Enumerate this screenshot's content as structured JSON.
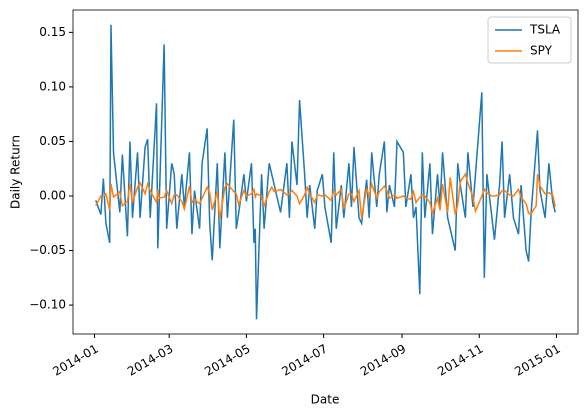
{
  "chart_data": {
    "type": "line",
    "xlabel": "Date",
    "ylabel": "Daily Return",
    "x": [
      "2014-01-02",
      "2014-01-06",
      "2014-01-08",
      "2014-01-10",
      "2014-01-13",
      "2014-01-14",
      "2014-01-16",
      "2014-01-21",
      "2014-01-23",
      "2014-01-27",
      "2014-01-29",
      "2014-01-31",
      "2014-02-04",
      "2014-02-06",
      "2014-02-10",
      "2014-02-12",
      "2014-02-14",
      "2014-02-19",
      "2014-02-20",
      "2014-02-21",
      "2014-02-25",
      "2014-02-27",
      "2014-03-03",
      "2014-03-05",
      "2014-03-07",
      "2014-03-11",
      "2014-03-13",
      "2014-03-17",
      "2014-03-19",
      "2014-03-21",
      "2014-03-25",
      "2014-03-27",
      "2014-03-31",
      "2014-04-02",
      "2014-04-04",
      "2014-04-08",
      "2014-04-10",
      "2014-04-14",
      "2014-04-16",
      "2014-04-21",
      "2014-04-23",
      "2014-04-25",
      "2014-04-29",
      "2014-05-01",
      "2014-05-05",
      "2014-05-07",
      "2014-05-08",
      "2014-05-09",
      "2014-05-13",
      "2014-05-15",
      "2014-05-19",
      "2014-05-21",
      "2014-05-23",
      "2014-05-28",
      "2014-06-02",
      "2014-06-04",
      "2014-06-06",
      "2014-06-10",
      "2014-06-12",
      "2014-06-16",
      "2014-06-18",
      "2014-06-20",
      "2014-06-24",
      "2014-06-26",
      "2014-06-30",
      "2014-07-02",
      "2014-07-07",
      "2014-07-09",
      "2014-07-11",
      "2014-07-15",
      "2014-07-17",
      "2014-07-21",
      "2014-07-23",
      "2014-07-25",
      "2014-07-29",
      "2014-07-31",
      "2014-08-04",
      "2014-08-06",
      "2014-08-08",
      "2014-08-12",
      "2014-08-14",
      "2014-08-18",
      "2014-08-20",
      "2014-08-22",
      "2014-08-26",
      "2014-08-28",
      "2014-09-02",
      "2014-09-04",
      "2014-09-08",
      "2014-09-10",
      "2014-09-12",
      "2014-09-15",
      "2014-09-17",
      "2014-09-19",
      "2014-09-23",
      "2014-09-25",
      "2014-09-29",
      "2014-10-01",
      "2014-10-03",
      "2014-10-07",
      "2014-10-09",
      "2014-10-13",
      "2014-10-15",
      "2014-10-17",
      "2014-10-21",
      "2014-10-23",
      "2014-10-27",
      "2014-10-29",
      "2014-11-03",
      "2014-11-05",
      "2014-11-07",
      "2014-11-11",
      "2014-11-13",
      "2014-11-17",
      "2014-11-19",
      "2014-11-21",
      "2014-11-25",
      "2014-11-28",
      "2014-12-02",
      "2014-12-04",
      "2014-12-08",
      "2014-12-10",
      "2014-12-12",
      "2014-12-16",
      "2014-12-17",
      "2014-12-19",
      "2014-12-23",
      "2014-12-26",
      "2014-12-29",
      "2014-12-31"
    ],
    "series": [
      {
        "name": "TSLA",
        "color": "#1f77b4",
        "values": [
          -0.004,
          -0.017,
          0.016,
          -0.025,
          -0.043,
          0.157,
          0.04,
          -0.015,
          0.038,
          -0.037,
          0.05,
          -0.02,
          0.04,
          -0.02,
          0.045,
          0.052,
          -0.02,
          0.085,
          -0.048,
          -0.01,
          0.139,
          -0.03,
          0.03,
          0.02,
          -0.03,
          0.02,
          -0.01,
          0.04,
          -0.035,
          0.005,
          -0.03,
          0.03,
          0.062,
          -0.025,
          -0.059,
          0.03,
          -0.048,
          0.04,
          -0.02,
          0.07,
          -0.03,
          -0.015,
          0.02,
          -0.005,
          0.03,
          -0.043,
          -0.03,
          -0.113,
          0.02,
          -0.03,
          0.03,
          0.02,
          0.01,
          -0.015,
          0.03,
          -0.02,
          0.05,
          0.01,
          0.088,
          0.02,
          -0.02,
          0.01,
          -0.03,
          0.005,
          0.02,
          -0.01,
          -0.043,
          0.04,
          -0.03,
          0.01,
          -0.02,
          0.03,
          -0.01,
          0.045,
          -0.02,
          -0.025,
          0.015,
          -0.02,
          0.04,
          -0.01,
          0.02,
          0.05,
          -0.015,
          0.01,
          -0.01,
          0.05,
          0.04,
          -0.01,
          0.02,
          -0.02,
          -0.01,
          -0.09,
          0.04,
          -0.02,
          0.03,
          -0.035,
          0.02,
          -0.01,
          0.04,
          -0.02,
          -0.03,
          -0.05,
          0.03,
          0.01,
          -0.02,
          0.04,
          -0.01,
          0.02,
          0.095,
          -0.075,
          0.02,
          -0.02,
          -0.04,
          0.01,
          0.05,
          -0.02,
          0.02,
          -0.02,
          -0.035,
          0.01,
          -0.05,
          -0.06,
          -0.015,
          0.045,
          0.06,
          0.005,
          -0.02,
          0.03,
          -0.005,
          -0.015
        ]
      },
      {
        "name": "SPY",
        "color": "#ff7f0e",
        "values": [
          -0.009,
          0.0,
          0.0,
          0.002,
          -0.013,
          0.011,
          -0.001,
          0.004,
          -0.009,
          -0.005,
          0.011,
          -0.006,
          0.008,
          0.012,
          0.002,
          0.011,
          0.005,
          -0.006,
          0.006,
          -0.002,
          -0.001,
          0.005,
          -0.007,
          0.001,
          0.001,
          -0.005,
          -0.012,
          0.009,
          -0.006,
          -0.003,
          -0.007,
          -0.002,
          0.008,
          0.003,
          -0.013,
          0.004,
          -0.021,
          0.008,
          0.011,
          0.004,
          0.002,
          -0.008,
          0.005,
          0.0,
          0.002,
          0.006,
          -0.001,
          0.002,
          0.0,
          -0.009,
          0.004,
          0.008,
          0.004,
          0.006,
          0.001,
          0.002,
          0.005,
          0.0,
          -0.007,
          0.001,
          0.008,
          0.002,
          -0.006,
          0.001,
          0.0,
          0.001,
          -0.004,
          0.005,
          0.001,
          0.006,
          -0.012,
          0.002,
          0.002,
          -0.005,
          0.005,
          -0.02,
          0.007,
          0.0,
          0.011,
          -0.002,
          0.004,
          0.009,
          0.005,
          -0.002,
          0.001,
          -0.002,
          0.0,
          -0.002,
          -0.003,
          0.004,
          -0.006,
          -0.001,
          0.001,
          0.0,
          -0.006,
          -0.016,
          -0.002,
          -0.013,
          0.011,
          -0.015,
          0.017,
          -0.017,
          -0.008,
          0.013,
          0.02,
          0.012,
          -0.001,
          -0.014,
          0.0,
          0.006,
          0.003,
          0.0,
          0.0,
          0.001,
          0.005,
          0.005,
          0.001,
          0.0,
          0.006,
          -0.001,
          -0.007,
          -0.016,
          -0.016,
          -0.009,
          0.02,
          0.009,
          0.002,
          0.003,
          0.001,
          -0.01
        ]
      }
    ],
    "xlim": [
      "2013-12-15",
      "2015-01-18"
    ],
    "xticks": [
      {
        "value": "2014-01-01",
        "label": "2014-01"
      },
      {
        "value": "2014-03-01",
        "label": "2014-03"
      },
      {
        "value": "2014-05-01",
        "label": "2014-05"
      },
      {
        "value": "2014-07-01",
        "label": "2014-07"
      },
      {
        "value": "2014-09-01",
        "label": "2014-09"
      },
      {
        "value": "2014-11-01",
        "label": "2014-11"
      },
      {
        "value": "2015-01-01",
        "label": "2015-01"
      }
    ],
    "ylim": [
      -0.1265,
      0.1705
    ],
    "yticks": [
      {
        "value": -0.1,
        "label": "−0.10"
      },
      {
        "value": -0.05,
        "label": "−0.05"
      },
      {
        "value": 0,
        "label": "0.00"
      },
      0.05,
      {
        "value": 0.1,
        "label": "0.10"
      },
      0.15
    ],
    "legend": "upper right"
  }
}
